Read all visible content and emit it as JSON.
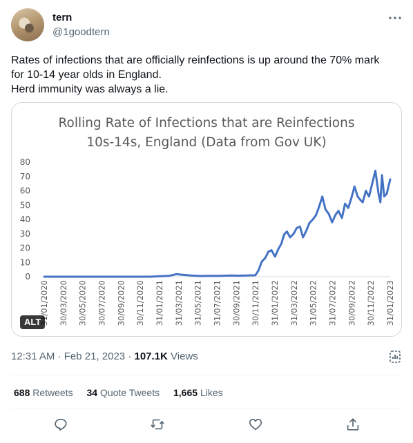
{
  "author": {
    "name": "tern",
    "handle": "@1goodtern",
    "avatar_icon": "tern-bird-avatar"
  },
  "tweet": {
    "lines": [
      "Rates of infections that are officially reinfections is up around the 70% mark",
      "for 10-14 year olds in England.",
      "Herd immunity was always a lie."
    ]
  },
  "media": {
    "alt_badge": "ALT"
  },
  "chart_data": {
    "type": "line",
    "title": "Rolling Rate of Infections that are Reinfections",
    "subtitle": "10s-14s, England (Data from Gov UK)",
    "xlabel": "",
    "ylabel": "",
    "ylim": [
      0,
      80
    ],
    "yticks": [
      0,
      10,
      20,
      30,
      40,
      50,
      60,
      70,
      80
    ],
    "xlim": [
      "2020-01-31",
      "2023-01-31"
    ],
    "xtick_labels": [
      "31/01/2020",
      "30/03/2020",
      "30/05/2020",
      "30/07/2020",
      "30/09/2020",
      "30/11/2020",
      "31/01/2021",
      "31/03/2021",
      "31/05/2021",
      "31/07/2021",
      "30/09/2021",
      "30/11/2021",
      "31/01/2022",
      "31/03/2022",
      "31/05/2022",
      "31/07/2022",
      "30/09/2022",
      "30/11/2022",
      "31/01/2023"
    ],
    "grid": false,
    "line_color": "#4472c4",
    "series": [
      {
        "x": [
          "2020-01-31",
          "2020-06-30",
          "2020-12-31",
          "2021-01-31",
          "2021-02-28",
          "2021-03-10",
          "2021-03-25",
          "2021-04-05",
          "2021-04-20",
          "2021-05-10",
          "2021-06-10",
          "2021-07-10",
          "2021-08-10",
          "2021-09-10",
          "2021-10-10",
          "2021-11-10",
          "2021-11-30",
          "2021-12-10",
          "2021-12-20",
          "2021-12-31",
          "2022-01-10",
          "2022-01-20",
          "2022-01-31",
          "2022-02-10",
          "2022-02-20",
          "2022-03-01",
          "2022-03-10",
          "2022-03-20",
          "2022-03-31",
          "2022-04-10",
          "2022-04-20",
          "2022-04-30",
          "2022-05-10",
          "2022-05-20",
          "2022-05-31",
          "2022-06-10",
          "2022-06-20",
          "2022-06-30",
          "2022-07-10",
          "2022-07-20",
          "2022-07-31",
          "2022-08-10",
          "2022-08-20",
          "2022-08-31",
          "2022-09-10",
          "2022-09-20",
          "2022-09-30",
          "2022-10-10",
          "2022-10-20",
          "2022-10-31",
          "2022-11-05",
          "2022-11-15",
          "2022-11-25",
          "2022-12-05",
          "2022-12-15",
          "2022-12-25",
          "2022-12-31",
          "2023-01-05",
          "2023-01-12",
          "2023-01-20",
          "2023-01-31"
        ],
        "y": [
          0,
          0,
          0,
          0.3,
          0.6,
          1.0,
          1.8,
          1.5,
          1.2,
          0.8,
          0.5,
          0.6,
          0.6,
          0.8,
          0.7,
          0.9,
          1.0,
          4.5,
          10.5,
          13,
          17.5,
          18.5,
          14,
          19,
          23,
          29.5,
          31.5,
          27.5,
          30,
          34,
          35,
          27.5,
          32,
          37.5,
          40,
          43,
          49,
          56,
          47,
          44,
          38,
          43,
          46,
          41,
          51,
          48,
          55,
          63,
          56,
          53,
          52,
          60,
          56,
          65,
          74,
          58,
          52,
          71,
          56,
          58,
          68
        ]
      }
    ]
  },
  "meta": {
    "time": "12:31 AM",
    "separator": "·",
    "date": "Feb 21, 2023",
    "separator2": "·",
    "views_count": "107.1K",
    "views_label": "Views"
  },
  "stats": {
    "retweets": {
      "count": "688",
      "label": "Retweets"
    },
    "quotes": {
      "count": "34",
      "label": "Quote Tweets"
    },
    "likes": {
      "count": "1,665",
      "label": "Likes"
    }
  },
  "actions": [
    "reply-icon",
    "retweet-icon",
    "like-icon",
    "share-icon"
  ],
  "colors": {
    "text": "#0f1419",
    "secondary": "#536471",
    "border": "#cfd9de",
    "divider": "#eff3f4"
  }
}
